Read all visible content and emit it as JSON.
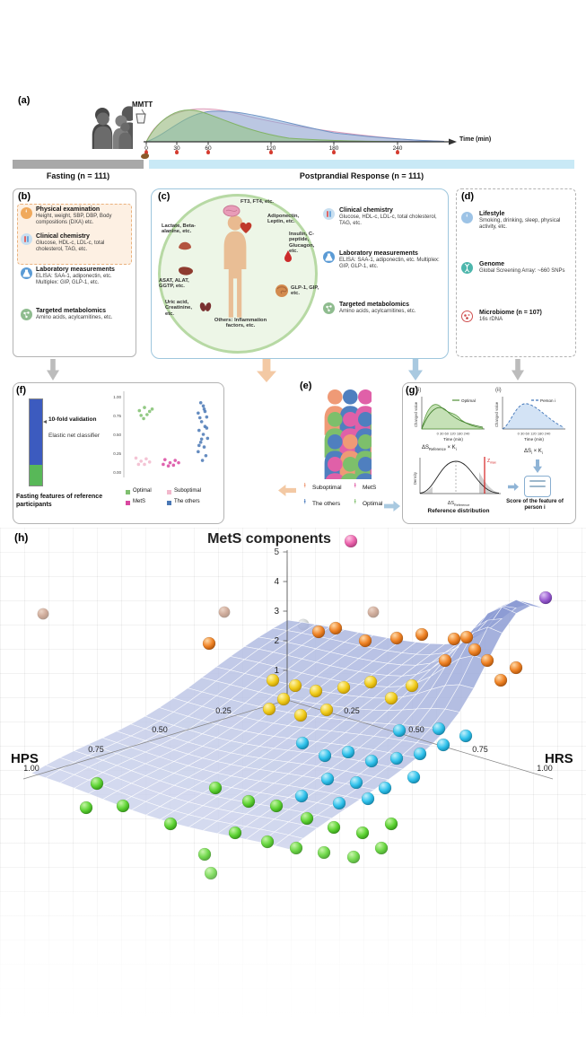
{
  "colors": {
    "salmon": "#ef9a76",
    "magenta": "#e060a8",
    "blue": "#4f7fbf",
    "green": "#7dbf6b"
  },
  "panels": {
    "a": {
      "label": "(a)",
      "mmtt": "MMTT",
      "time_label": "Time (min)",
      "ticks": [
        "0",
        "30",
        "60",
        "120",
        "180",
        "240"
      ],
      "fasting": "Fasting (n = 111)",
      "postprandial": "Postprandial Response (n = 111)"
    },
    "b": {
      "label": "(b)",
      "items": [
        {
          "title": "Physical examination",
          "desc": "Height, weight, SBP, DBP, Body compositions (DXA) etc."
        },
        {
          "title": "Clinical chemistry",
          "desc": "Glucose, HDL-c, LDL-c, total cholesterol, TAG, etc."
        },
        {
          "title": "Laboratory measurements",
          "desc": "ELISA: SAA-1, adiponectin, etc. Multiplex: GIP, GLP-1, etc."
        },
        {
          "title": "Targeted metabolomics",
          "desc": "Amino acids, acylcarnitines, etc."
        }
      ]
    },
    "c": {
      "label": "(c)",
      "organs": [
        {
          "name": "brain",
          "label": "FT3, FT4, etc."
        },
        {
          "name": "heart",
          "label": "Adiponectin, Leptin, etc."
        },
        {
          "name": "muscle",
          "label": "Lactate, Beta-alanine, etc."
        },
        {
          "name": "blood-drop",
          "label": "Insulin, C-peptide, Glucagon, etc."
        },
        {
          "name": "liver",
          "label": "ASAT, ALAT, GGTP, etc."
        },
        {
          "name": "intestine",
          "label": "GLP-1, GIP, etc."
        },
        {
          "name": "kidney",
          "label": "Uric acid, Creatinine, etc."
        },
        {
          "name": "others",
          "label": "Others: Inflammation factors, etc."
        }
      ],
      "items": [
        {
          "title": "Clinical chemistry",
          "desc": "Glucose, HDL-c, LDL-c, total cholesterol, TAG, etc."
        },
        {
          "title": "Laboratory measurements",
          "desc": "ELISA: SAA-1, adiponectin, etc. Multiplex: GIP, GLP-1, etc."
        },
        {
          "title": "Targeted metabolomics",
          "desc": "Amino acids, acylcarnitines, etc."
        }
      ]
    },
    "d": {
      "label": "(d)",
      "items": [
        {
          "title": "Lifestyle",
          "desc": "Smoking, drinking, sleep, physical activity, etc."
        },
        {
          "title": "Genome",
          "desc": "Global Screening Array: ~660 SNPs"
        },
        {
          "title": "Microbiome (n = 107)",
          "desc": "16s rDNA"
        }
      ]
    },
    "e": {
      "label": "(e)",
      "grid": [
        [
          "salmon",
          "blue",
          "magenta",
          "green"
        ],
        [
          "green",
          "magenta",
          "blue",
          "salmon"
        ],
        [
          "blue",
          "salmon",
          "green",
          "magenta"
        ],
        [
          "magenta",
          "green",
          "blue",
          "salmon"
        ]
      ],
      "legend": [
        {
          "label": "Suboptimal",
          "color": "#ef9a76"
        },
        {
          "label": "MetS",
          "color": "#e060a8"
        },
        {
          "label": "The others",
          "color": "#4f7fbf"
        },
        {
          "label": "Optimal",
          "color": "#7dbf6b"
        }
      ]
    },
    "f": {
      "label": "(f)",
      "bar_note1": "10-fold validation",
      "bar_note2": "Elastic net classifier",
      "y_ticks": [
        "1.00",
        "0.75",
        "0.50",
        "0.25",
        "0.00"
      ],
      "legend": [
        {
          "label": "Optimal",
          "color": "#7fbf6f"
        },
        {
          "label": "Suboptimal",
          "color": "#f2b8cc"
        },
        {
          "label": "MetS",
          "color": "#d948a0"
        },
        {
          "label": "The others",
          "color": "#4a78b5"
        }
      ],
      "scatter": [
        {
          "color": "#7fbf6f",
          "points": [
            [
              14,
              20
            ],
            [
              20,
              16
            ],
            [
              26,
              21
            ],
            [
              16,
              26
            ],
            [
              23,
              25
            ],
            [
              29,
              18
            ],
            [
              19,
              30
            ]
          ]
        },
        {
          "color": "#f2b8cc",
          "points": [
            [
              10,
              80
            ],
            [
              16,
              84
            ],
            [
              22,
              81
            ],
            [
              13,
              88
            ],
            [
              20,
              88
            ],
            [
              26,
              85
            ]
          ]
        },
        {
          "color": "#d948a0",
          "points": [
            [
              44,
              82
            ],
            [
              50,
              86
            ],
            [
              56,
              83
            ],
            [
              48,
              90
            ],
            [
              54,
              89
            ],
            [
              60,
              86
            ],
            [
              42,
              88
            ]
          ]
        },
        {
          "color": "#4a78b5",
          "points": [
            [
              86,
              10
            ],
            [
              90,
              18
            ],
            [
              83,
              23
            ],
            [
              93,
              28
            ],
            [
              87,
              34
            ],
            [
              91,
              40
            ],
            [
              84,
              45
            ],
            [
              89,
              50
            ],
            [
              94,
              55
            ],
            [
              86,
              60
            ],
            [
              90,
              66
            ],
            [
              83,
              72
            ],
            [
              92,
              77
            ],
            [
              88,
              83
            ],
            [
              85,
              29
            ],
            [
              91,
              21
            ],
            [
              87,
              56
            ],
            [
              93,
              42
            ],
            [
              84,
              64
            ],
            [
              89,
              14
            ]
          ]
        }
      ],
      "caption": "Fasting features of reference participants"
    },
    "g": {
      "label": "(g)",
      "sub_i": "(i)",
      "sub_ii": "(ii)",
      "chart1_legend": "Optimal",
      "chart2_legend": "Person i",
      "ylabel": "Changed value",
      "xticks": "0 30 60 120 180 240",
      "xlabel": "Time (min)",
      "f1": [
        "ΔS",
        "Reference",
        " × K",
        "i"
      ],
      "f2": [
        "ΔS",
        "i",
        " × K",
        "i"
      ],
      "zmax": [
        "Z",
        "max"
      ],
      "density_ylabel": "Density",
      "density_sub": [
        "ΔS",
        "Reference"
      ],
      "density_label": "Reference distribution",
      "score_caption": "Score of the feature of person i"
    },
    "h": {
      "label": "(h)",
      "title": "MetS components",
      "z_ticks": [
        "1",
        "2",
        "3",
        "4",
        "5"
      ],
      "hps": "HPS",
      "hrs": "HRS",
      "hps_ticks": [
        "0.25",
        "0.50",
        "0.75",
        "1.00"
      ],
      "hrs_ticks": [
        "0.25",
        "0.50",
        "0.75",
        "1.00"
      ],
      "sphere_colors": {
        "green": [
          "#c4f5a5",
          "#5fd435",
          "#2c8c12"
        ],
        "cyan": [
          "#c3f0fc",
          "#32c3ec",
          "#0c7da3"
        ],
        "yellow": [
          "#fdf4b2",
          "#f1cd1c",
          "#b98e00"
        ],
        "orange": [
          "#ffd9a8",
          "#ef8326",
          "#a54d07"
        ],
        "magenta": [
          "#ffbade",
          "#e7419a",
          "#991560"
        ],
        "purple": [
          "#ddc3f5",
          "#9c5ed2",
          "#5e2e95"
        ],
        "brown": [
          "#d8ab91",
          "#a05a38",
          "#5e2f17"
        ],
        "gray": [
          "#dfe3e3",
          "#a3abab",
          "#646f6f"
        ]
      },
      "spheres": [
        [
          48,
          96,
          "brown",
          1
        ],
        [
          250,
          94,
          "brown",
          1
        ],
        [
          338,
          108,
          "gray",
          1
        ],
        [
          416,
          94,
          "brown",
          1
        ],
        [
          233,
          129,
          "orange"
        ],
        [
          355,
          116,
          "orange"
        ],
        [
          374,
          112,
          "orange"
        ],
        [
          407,
          126,
          "orange"
        ],
        [
          442,
          123,
          "orange"
        ],
        [
          470,
          119,
          "orange"
        ],
        [
          506,
          124,
          "orange"
        ],
        [
          520,
          122,
          "orange"
        ],
        [
          529,
          136,
          "orange"
        ],
        [
          543,
          148,
          "orange"
        ],
        [
          575,
          156,
          "orange"
        ],
        [
          496,
          148,
          "orange"
        ],
        [
          558,
          170,
          "orange"
        ],
        [
          304,
          170,
          "yellow"
        ],
        [
          329,
          176,
          "yellow"
        ],
        [
          352,
          182,
          "yellow"
        ],
        [
          383,
          178,
          "yellow"
        ],
        [
          413,
          172,
          "yellow"
        ],
        [
          300,
          202,
          "yellow"
        ],
        [
          335,
          209,
          "yellow"
        ],
        [
          364,
          203,
          "yellow"
        ],
        [
          459,
          176,
          "yellow"
        ],
        [
          436,
          190,
          "yellow"
        ],
        [
          316,
          191,
          "yellow"
        ],
        [
          337,
          240,
          "cyan"
        ],
        [
          362,
          254,
          "cyan"
        ],
        [
          388,
          250,
          "cyan"
        ],
        [
          414,
          260,
          "cyan"
        ],
        [
          442,
          257,
          "cyan"
        ],
        [
          468,
          252,
          "cyan"
        ],
        [
          494,
          242,
          "cyan"
        ],
        [
          519,
          232,
          "cyan"
        ],
        [
          365,
          280,
          "cyan"
        ],
        [
          397,
          284,
          "cyan"
        ],
        [
          429,
          290,
          "cyan"
        ],
        [
          461,
          278,
          "cyan"
        ],
        [
          336,
          299,
          "cyan"
        ],
        [
          489,
          224,
          "cyan"
        ],
        [
          445,
          226,
          "cyan"
        ],
        [
          410,
          302,
          "cyan"
        ],
        [
          378,
          307,
          "cyan"
        ],
        [
          96,
          312,
          "green"
        ],
        [
          108,
          285,
          "green"
        ],
        [
          137,
          310,
          "green"
        ],
        [
          190,
          330,
          "green"
        ],
        [
          240,
          290,
          "green"
        ],
        [
          262,
          340,
          "green"
        ],
        [
          277,
          305,
          "green"
        ],
        [
          298,
          350,
          "green"
        ],
        [
          308,
          310,
          "green"
        ],
        [
          330,
          357,
          "green"
        ],
        [
          342,
          324,
          "green"
        ],
        [
          361,
          362,
          "green"
        ],
        [
          372,
          334,
          "green"
        ],
        [
          394,
          367,
          "green"
        ],
        [
          404,
          340,
          "green"
        ],
        [
          425,
          357,
          "green"
        ],
        [
          436,
          330,
          "green"
        ],
        [
          228,
          364,
          "green"
        ],
        [
          235,
          385,
          "green"
        ],
        [
          391,
          15,
          "magenta"
        ],
        [
          608,
          78,
          "purple"
        ]
      ]
    }
  }
}
